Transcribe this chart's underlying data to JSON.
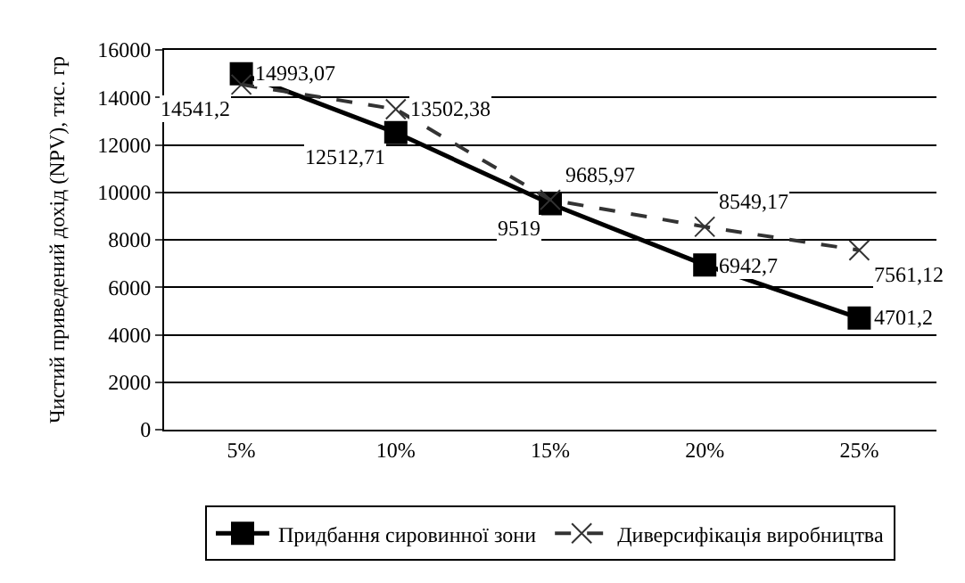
{
  "chart_data": {
    "type": "line",
    "ylabel": "Чистий приведений дохід (NPV), тис. гр",
    "categories": [
      "5%",
      "10%",
      "15%",
      "20%",
      "25%"
    ],
    "series": [
      {
        "name": "Придбання сировинної зони",
        "color": "#000000",
        "marker": "square",
        "line_style": "solid",
        "values": [
          14993.07,
          12512.71,
          9519,
          6942.7,
          4701.2
        ],
        "value_labels": [
          "14993,07",
          "12512,71",
          "9519",
          "6942,7",
          "4701,2"
        ]
      },
      {
        "name": "Диверсифікація виробництва",
        "color": "#333333",
        "marker": "cross",
        "line_style": "dashed",
        "values": [
          14541.2,
          13502.38,
          9685.97,
          8549.17,
          7561.12
        ],
        "value_labels": [
          "14541,2",
          "13502,38",
          "9685,97",
          "8549,17",
          "7561,12"
        ]
      }
    ],
    "ylim": [
      0,
      16000
    ],
    "yticks": [
      0,
      2000,
      4000,
      6000,
      8000,
      10000,
      12000,
      14000,
      16000
    ],
    "grid": "y",
    "legend": "bottom"
  }
}
